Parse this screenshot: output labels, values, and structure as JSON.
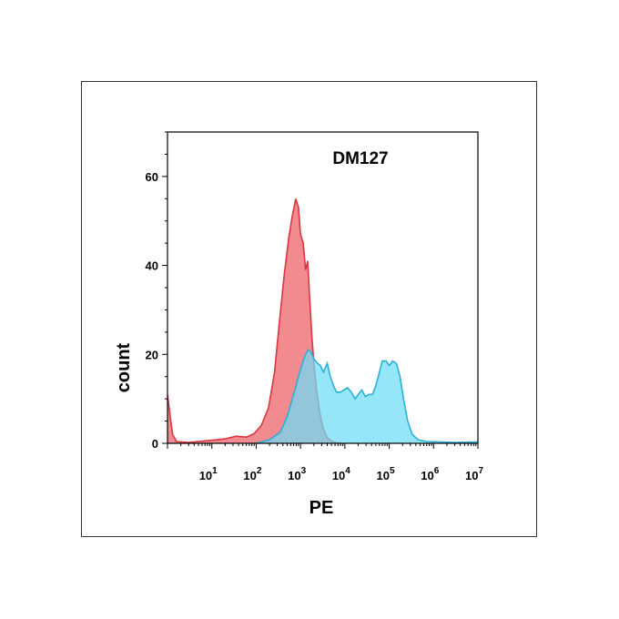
{
  "chart_data": {
    "type": "area",
    "title": "DM127",
    "xlabel": "PE",
    "ylabel": "count",
    "x_scale": "log",
    "xlim": [
      1,
      10000000
    ],
    "ylim": [
      0,
      70
    ],
    "grid": false,
    "y_ticks": [
      {
        "value": 0,
        "label": "0"
      },
      {
        "value": 20,
        "label": "20"
      },
      {
        "value": 40,
        "label": "40"
      },
      {
        "value": 60,
        "label": "60"
      }
    ],
    "x_ticks": [
      {
        "value": 10,
        "base": "10",
        "exp": "1"
      },
      {
        "value": 100,
        "base": "10",
        "exp": "2"
      },
      {
        "value": 1000,
        "base": "10",
        "exp": "3"
      },
      {
        "value": 10000,
        "base": "10",
        "exp": "4"
      },
      {
        "value": 100000,
        "base": "10",
        "exp": "5"
      },
      {
        "value": 1000000,
        "base": "10",
        "exp": "6"
      },
      {
        "value": 10000000,
        "base": "10",
        "exp": "7"
      }
    ],
    "series": [
      {
        "color": "#f28b8f",
        "stroke": "#d9363e",
        "points": [
          [
            1,
            11
          ],
          [
            1.15,
            6
          ],
          [
            1.3,
            2
          ],
          [
            1.6,
            0.4
          ],
          [
            3,
            0.2
          ],
          [
            8,
            0.6
          ],
          [
            20,
            1
          ],
          [
            35,
            1.6
          ],
          [
            60,
            1.4
          ],
          [
            90,
            2.2
          ],
          [
            130,
            4
          ],
          [
            190,
            8
          ],
          [
            260,
            16
          ],
          [
            340,
            28
          ],
          [
            430,
            38
          ],
          [
            540,
            46
          ],
          [
            650,
            51
          ],
          [
            780,
            55
          ],
          [
            900,
            53
          ],
          [
            1000,
            47
          ],
          [
            1150,
            45
          ],
          [
            1300,
            39
          ],
          [
            1450,
            41
          ],
          [
            1600,
            33
          ],
          [
            1800,
            24
          ],
          [
            2000,
            18
          ],
          [
            2300,
            12
          ],
          [
            2700,
            7
          ],
          [
            3200,
            3.5
          ],
          [
            4000,
            1.2
          ],
          [
            5500,
            0.3
          ],
          [
            8000,
            0
          ]
        ]
      },
      {
        "color": "#6edcf6",
        "stroke": "#2bb0d6",
        "points": [
          [
            100,
            0
          ],
          [
            200,
            0.8
          ],
          [
            350,
            2.5
          ],
          [
            500,
            6
          ],
          [
            700,
            11
          ],
          [
            900,
            15
          ],
          [
            1100,
            18
          ],
          [
            1300,
            20
          ],
          [
            1500,
            21
          ],
          [
            1700,
            20.5
          ],
          [
            2000,
            19
          ],
          [
            2400,
            18
          ],
          [
            2800,
            17.5
          ],
          [
            3300,
            16
          ],
          [
            4000,
            18
          ],
          [
            4700,
            15
          ],
          [
            5500,
            13
          ],
          [
            6500,
            11.5
          ],
          [
            8000,
            11.5
          ],
          [
            9500,
            12
          ],
          [
            11500,
            12.5
          ],
          [
            14000,
            11.5
          ],
          [
            17000,
            10
          ],
          [
            20000,
            11
          ],
          [
            24000,
            12
          ],
          [
            29000,
            10.5
          ],
          [
            35000,
            11
          ],
          [
            42000,
            11
          ],
          [
            50000,
            13
          ],
          [
            60000,
            16
          ],
          [
            70000,
            18.5
          ],
          [
            85000,
            18.5
          ],
          [
            100000,
            17.5
          ],
          [
            120000,
            18.5
          ],
          [
            145000,
            18
          ],
          [
            175000,
            15
          ],
          [
            210000,
            10
          ],
          [
            260000,
            5
          ],
          [
            330000,
            2
          ],
          [
            450000,
            0.8
          ],
          [
            700000,
            0.4
          ],
          [
            1500000,
            0.3
          ],
          [
            3000000,
            0.2
          ],
          [
            10000000,
            0.3
          ]
        ]
      }
    ]
  }
}
